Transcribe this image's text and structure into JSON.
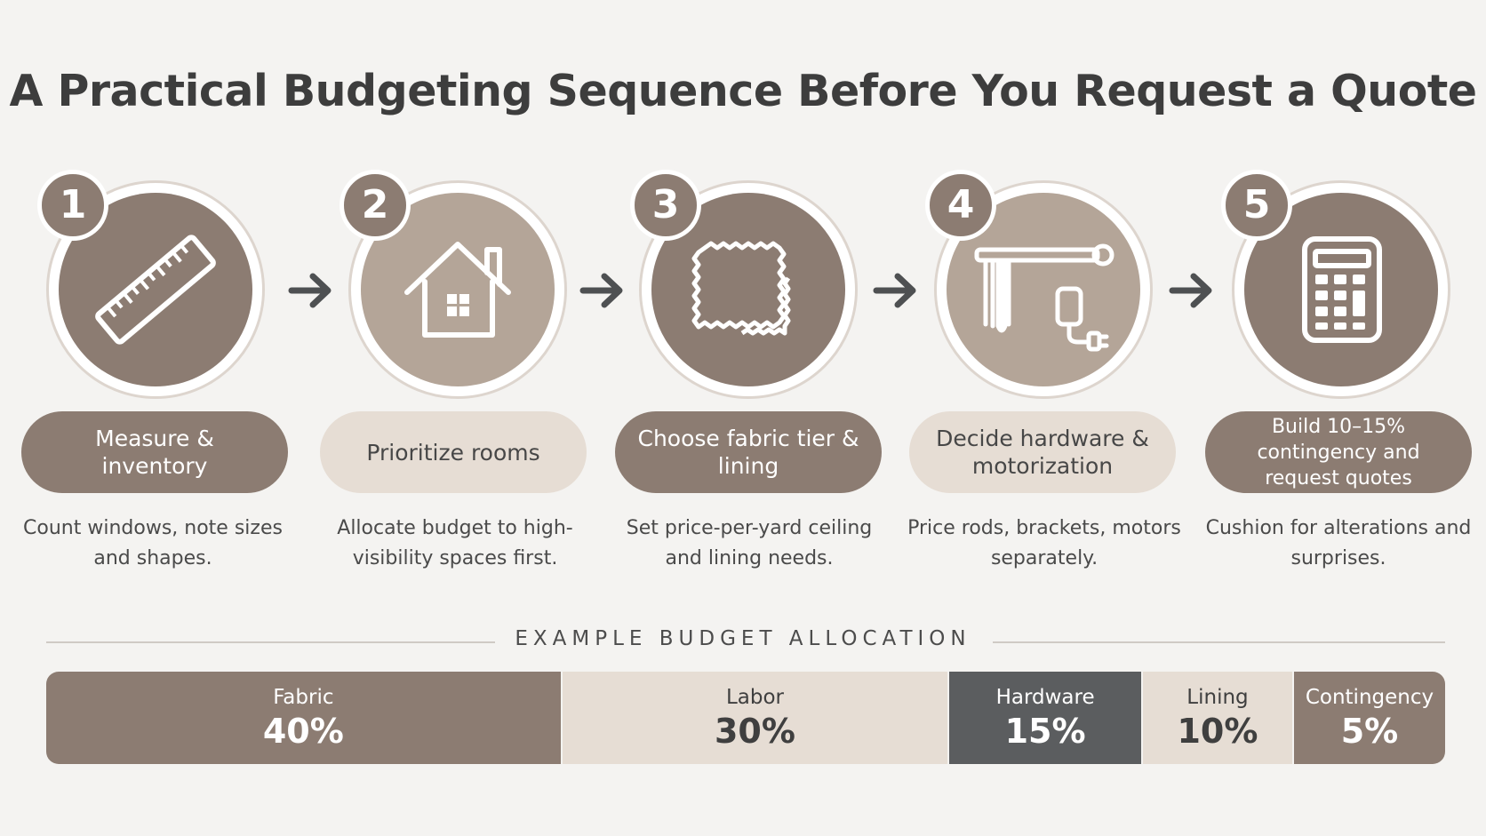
{
  "title": "A Practical Budgeting Sequence Before You Request a Quote",
  "steps": [
    {
      "number": "1",
      "label": "Measure & inventory",
      "description": "Count windows, note sizes and shapes.",
      "icon": "ruler-icon",
      "disc_color": "#8c7c72"
    },
    {
      "number": "2",
      "label": "Prioritize rooms",
      "description": "Allocate budget to high-visibility spaces first.",
      "icon": "house-icon",
      "disc_color": "#b4a598"
    },
    {
      "number": "3",
      "label": "Choose fabric tier & lining",
      "description": "Set price-per-yard ceiling and lining needs.",
      "icon": "fabric-swatch-icon",
      "disc_color": "#8c7c72"
    },
    {
      "number": "4",
      "label": "Decide hardware & motorization",
      "description": "Price rods, brackets, motors separately.",
      "icon": "curtain-rod-motor-icon",
      "disc_color": "#b4a598"
    },
    {
      "number": "5",
      "label": "Build 10–15% contingency and request quotes",
      "description": "Cushion for alterations and surprises.",
      "icon": "calculator-icon",
      "disc_color": "#8c7c72"
    }
  ],
  "allocation": {
    "heading": "EXAMPLE BUDGET ALLOCATION",
    "segments": [
      {
        "name": "Fabric",
        "value": "40%",
        "share": 40,
        "color": "#8c7c72",
        "text_color": "#ffffff"
      },
      {
        "name": "Labor",
        "value": "30%",
        "share": 30,
        "color": "#e6ddd4",
        "text_color": "#3f3f3f"
      },
      {
        "name": "Hardware",
        "value": "15%",
        "share": 15,
        "color": "#5b5d5f",
        "text_color": "#ffffff"
      },
      {
        "name": "Lining",
        "value": "10%",
        "share": 10,
        "color": "#e6ddd4",
        "text_color": "#3f3f3f"
      },
      {
        "name": "Contingency",
        "value": "5%",
        "share": 5,
        "color": "#8c7c72",
        "text_color": "#ffffff"
      }
    ]
  },
  "colors": {
    "arrow": "#4e5052",
    "background": "#f4f3f1"
  }
}
